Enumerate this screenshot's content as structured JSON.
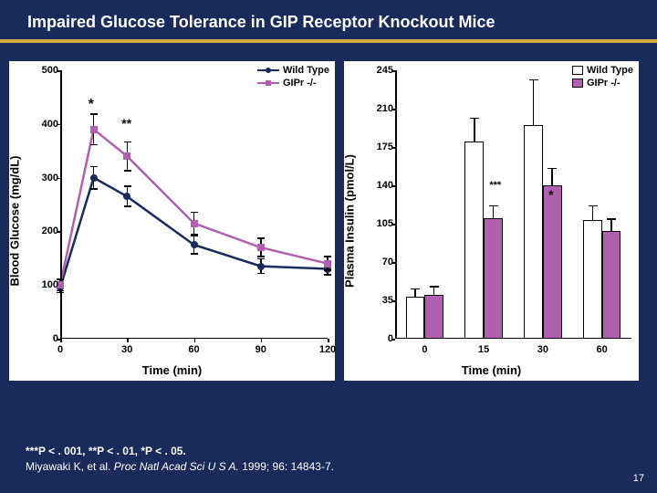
{
  "title": "Impaired Glucose Tolerance in GIP Receptor Knockout Mice",
  "footer": {
    "stats": "***P < . 001, **P < . 01, *P < . 05.",
    "citation_pre": "Miyawaki K, et al. ",
    "citation_ital": "Proc Natl Acad Sci U S A.",
    "citation_post": " 1999; 96: 14843-7."
  },
  "page_number": "17",
  "line_chart": {
    "type": "line",
    "ylabel": "Blood Glucose (mg/dL)",
    "xlabel": "Time (min)",
    "xlim": [
      0,
      120
    ],
    "ylim": [
      0,
      500
    ],
    "xticks": [
      0,
      30,
      60,
      90,
      120
    ],
    "yticks": [
      0,
      100,
      200,
      300,
      400,
      500
    ],
    "series": [
      {
        "name": "Wild Type",
        "color": "#1a2a5a",
        "marker": "circle",
        "x": [
          0,
          15,
          30,
          60,
          90,
          120
        ],
        "y": [
          95,
          300,
          265,
          175,
          135,
          130
        ],
        "err": [
          10,
          22,
          20,
          18,
          15,
          12
        ]
      },
      {
        "name": "GIPr -/-",
        "color": "#b060b0",
        "marker": "square",
        "x": [
          0,
          15,
          30,
          60,
          90,
          120
        ],
        "y": [
          100,
          390,
          340,
          215,
          170,
          140
        ],
        "err": [
          12,
          30,
          28,
          22,
          18,
          14
        ]
      }
    ],
    "sig_marks": [
      {
        "label": "*",
        "x": 15,
        "y": 450,
        "fontsize": 16
      },
      {
        "label": "**",
        "x": 30,
        "y": 415,
        "fontsize": 14
      }
    ]
  },
  "bar_chart": {
    "type": "bar",
    "ylabel": "Plasma Insulin (pmol/L)",
    "xlabel": "Time (min)",
    "categories": [
      0,
      15,
      30,
      60
    ],
    "ylim": [
      0,
      245
    ],
    "yticks": [
      0,
      35,
      70,
      105,
      140,
      175,
      210,
      245
    ],
    "series": [
      {
        "name": "Wild Type",
        "color": "#ffffff",
        "values": [
          38,
          180,
          195,
          108
        ],
        "err": [
          8,
          22,
          42,
          14
        ]
      },
      {
        "name": "GIPr -/-",
        "color": "#b060b0",
        "values": [
          40,
          110,
          140,
          98
        ],
        "err": [
          8,
          12,
          16,
          12
        ]
      }
    ],
    "bar_width": 0.32,
    "sig_marks": [
      {
        "label": "***",
        "cat_index": 1,
        "y": 145,
        "fontsize": 11
      },
      {
        "label": "*",
        "cat_index": 2,
        "y": 138,
        "fontsize": 14
      }
    ]
  },
  "legend_left": {
    "items": [
      {
        "label": "Wild Type",
        "color": "#1a2a5a"
      },
      {
        "label": "GIPr -/-",
        "color": "#b060b0"
      }
    ]
  },
  "legend_right": {
    "items": [
      {
        "label": "Wild Type",
        "color": "#ffffff"
      },
      {
        "label": "GIPr -/-",
        "color": "#b060b0"
      }
    ]
  },
  "colors": {
    "background": "#1a2a5a",
    "accent_bar": "#d0b040",
    "axis": "#000000"
  }
}
